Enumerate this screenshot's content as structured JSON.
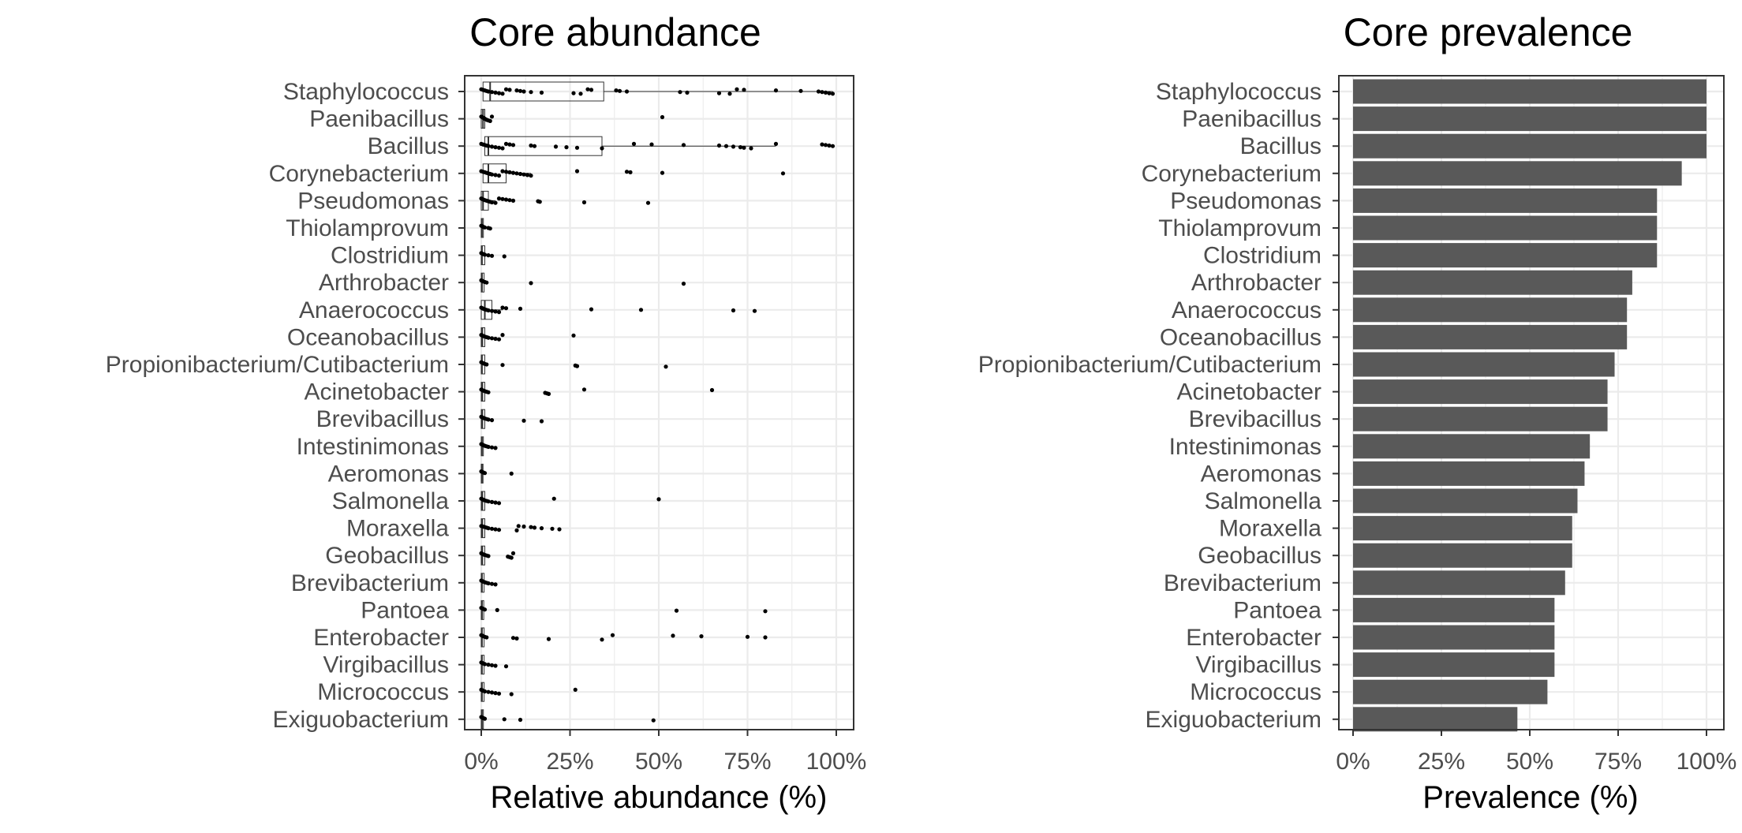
{
  "chart_data": [
    {
      "type": "box",
      "title": "Core abundance",
      "xlabel": "Relative abundance (%)",
      "ylabel": "",
      "xlim": [
        0,
        100
      ],
      "xticks": [
        "0%",
        "25%",
        "50%",
        "75%",
        "100%"
      ],
      "grid": true,
      "categories": [
        "Staphylococcus",
        "Paenibacillus",
        "Bacillus",
        "Corynebacterium",
        "Pseudomonas",
        "Thiolamprovum",
        "Clostridium",
        "Arthrobacter",
        "Anaerococcus",
        "Oceanobacillus",
        "Propionibacterium/Cutibacterium",
        "Acinetobacter",
        "Brevibacillus",
        "Intestinimonas",
        "Aeromonas",
        "Salmonella",
        "Moraxella",
        "Geobacillus",
        "Brevibacterium",
        "Pantoea",
        "Enterobacter",
        "Virgibacillus",
        "Micrococcus",
        "Exiguobacterium"
      ],
      "boxes": [
        {
          "q1": 0.5,
          "median": 2.5,
          "q3": 34.5,
          "whisker_high": 99
        },
        {
          "q1": 0,
          "median": 0.5,
          "q3": 1,
          "whisker_high": 2
        },
        {
          "q1": 1,
          "median": 2,
          "q3": 34,
          "whisker_high": 83
        },
        {
          "q1": 0.5,
          "median": 2,
          "q3": 7,
          "whisker_high": 14
        },
        {
          "q1": 0,
          "median": 0.5,
          "q3": 2,
          "whisker_high": 4
        },
        {
          "q1": 0,
          "median": 0.2,
          "q3": 0.6,
          "whisker_high": 1
        },
        {
          "q1": 0,
          "median": 0.2,
          "q3": 1,
          "whisker_high": 2
        },
        {
          "q1": 0,
          "median": 0.2,
          "q3": 0.8,
          "whisker_high": 1.5
        },
        {
          "q1": 0,
          "median": 1,
          "q3": 3,
          "whisker_high": 6
        },
        {
          "q1": 0,
          "median": 0.3,
          "q3": 1,
          "whisker_high": 2.5
        },
        {
          "q1": 0,
          "median": 0.2,
          "q3": 1,
          "whisker_high": 2
        },
        {
          "q1": 0,
          "median": 0.3,
          "q3": 1,
          "whisker_high": 2
        },
        {
          "q1": 0,
          "median": 0.3,
          "q3": 1,
          "whisker_high": 2
        },
        {
          "q1": 0,
          "median": 0.2,
          "q3": 0.6,
          "whisker_high": 1.5
        },
        {
          "q1": 0,
          "median": 0.2,
          "q3": 0.5,
          "whisker_high": 1
        },
        {
          "q1": 0,
          "median": 0.3,
          "q3": 1,
          "whisker_high": 2
        },
        {
          "q1": 0,
          "median": 0.3,
          "q3": 1,
          "whisker_high": 2
        },
        {
          "q1": 0,
          "median": 0.3,
          "q3": 1,
          "whisker_high": 2
        },
        {
          "q1": 0,
          "median": 0.2,
          "q3": 0.8,
          "whisker_high": 2
        },
        {
          "q1": 0,
          "median": 0.2,
          "q3": 0.7,
          "whisker_high": 1.5
        },
        {
          "q1": 0,
          "median": 0.2,
          "q3": 0.8,
          "whisker_high": 1.8
        },
        {
          "q1": 0,
          "median": 0.2,
          "q3": 0.8,
          "whisker_high": 1.8
        },
        {
          "q1": 0,
          "median": 0.2,
          "q3": 0.8,
          "whisker_high": 1.8
        },
        {
          "q1": 0,
          "median": 0.2,
          "q3": 0.6,
          "whisker_high": 1.2
        }
      ],
      "points": [
        [
          0,
          0.5,
          1,
          1.5,
          2,
          3,
          4,
          5,
          6,
          7,
          8,
          10,
          11,
          12,
          14,
          17,
          26,
          28,
          30,
          31,
          38,
          39,
          41,
          56,
          58,
          67,
          70,
          72,
          74,
          83,
          90,
          95,
          96,
          97,
          98,
          99
        ],
        [
          0,
          0.3,
          0.5,
          0.8,
          1,
          1.3,
          1.6,
          2,
          2.5,
          3,
          51
        ],
        [
          0,
          0.5,
          1,
          1.5,
          2,
          3,
          4,
          5,
          6,
          7,
          8,
          9,
          14,
          15,
          21,
          24,
          27,
          34,
          43,
          48,
          57,
          67,
          69,
          71,
          73,
          74,
          76,
          83,
          96,
          97,
          98,
          99
        ],
        [
          0,
          0.5,
          1,
          1.5,
          2,
          2.5,
          3,
          4,
          5,
          6,
          7,
          8,
          9,
          10,
          11,
          12,
          13,
          14,
          27,
          41,
          42,
          51,
          85
        ],
        [
          0,
          0.3,
          0.6,
          1,
          1.5,
          2,
          2.5,
          3,
          4,
          5,
          6,
          7,
          8,
          9,
          16,
          16.5,
          29,
          47
        ],
        [
          0,
          0.3,
          0.6,
          1,
          2,
          2.5
        ],
        [
          0,
          0.3,
          0.6,
          1,
          2,
          3,
          6.5
        ],
        [
          0,
          0.3,
          0.6,
          1,
          1.5,
          14,
          57
        ],
        [
          0,
          0.3,
          0.6,
          1,
          1.5,
          2,
          3,
          4,
          5,
          6,
          7,
          11,
          31,
          45,
          71,
          77
        ],
        [
          0,
          0.3,
          0.6,
          1,
          1.5,
          2,
          3,
          4,
          5,
          6,
          26
        ],
        [
          0,
          0.3,
          0.6,
          1,
          1.5,
          6,
          26.5,
          27,
          52
        ],
        [
          0,
          0.3,
          0.6,
          1,
          1.5,
          2,
          18,
          18.5,
          19,
          29,
          65
        ],
        [
          0,
          0.3,
          0.6,
          1,
          1.5,
          2,
          3,
          12,
          17
        ],
        [
          0,
          0.3,
          0.6,
          1,
          1.5,
          2,
          3,
          4
        ],
        [
          0,
          0.3,
          0.6,
          1,
          8.5
        ],
        [
          0,
          0.3,
          0.6,
          1,
          1.5,
          2,
          3,
          4,
          5,
          20.5,
          50
        ],
        [
          0,
          0.5,
          1,
          1.5,
          2,
          3,
          4,
          5,
          10,
          10.5,
          12,
          14,
          15,
          17,
          20,
          22
        ],
        [
          0,
          0.3,
          0.6,
          1,
          1.5,
          2,
          7.5,
          8,
          8.5,
          9
        ],
        [
          0,
          0.3,
          0.6,
          1,
          1.5,
          2,
          3,
          4
        ],
        [
          0,
          0.3,
          0.6,
          1,
          4.5,
          55,
          80
        ],
        [
          0,
          0.3,
          0.6,
          1,
          1.5,
          9,
          10,
          19,
          34,
          37,
          54,
          62,
          75,
          80
        ],
        [
          0,
          0.3,
          0.6,
          1,
          2,
          3,
          4,
          7
        ],
        [
          0,
          0.3,
          0.6,
          1,
          2,
          3,
          4,
          5,
          8.5,
          26.5
        ],
        [
          0,
          0.3,
          0.6,
          1,
          6.5,
          11,
          48.5
        ]
      ]
    },
    {
      "type": "bar",
      "orientation": "horizontal",
      "title": "Core prevalence",
      "xlabel": "Prevalence (%)",
      "ylabel": "",
      "xlim": [
        0,
        100
      ],
      "xticks": [
        "0%",
        "25%",
        "50%",
        "75%",
        "100%"
      ],
      "grid": true,
      "color": "#595959",
      "categories": [
        "Staphylococcus",
        "Paenibacillus",
        "Bacillus",
        "Corynebacterium",
        "Pseudomonas",
        "Thiolamprovum",
        "Clostridium",
        "Arthrobacter",
        "Anaerococcus",
        "Oceanobacillus",
        "Propionibacterium/Cutibacterium",
        "Acinetobacter",
        "Brevibacillus",
        "Intestinimonas",
        "Aeromonas",
        "Salmonella",
        "Moraxella",
        "Geobacillus",
        "Brevibacterium",
        "Pantoea",
        "Enterobacter",
        "Virgibacillus",
        "Micrococcus",
        "Exiguobacterium"
      ],
      "values": [
        100,
        100,
        100,
        93,
        86,
        86,
        86,
        79,
        77.5,
        77.5,
        74,
        72,
        72,
        67,
        65.5,
        63.5,
        62,
        62,
        60,
        57,
        57,
        57,
        55,
        46.5
      ]
    }
  ]
}
